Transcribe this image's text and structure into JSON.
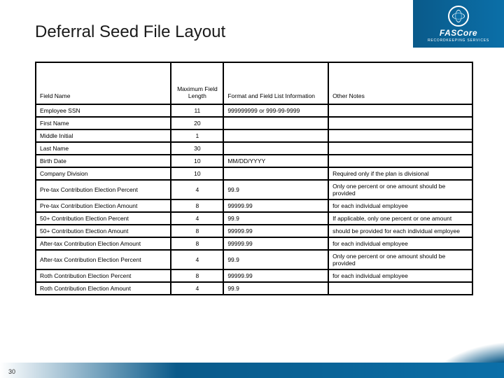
{
  "brand": {
    "name": "FASCore",
    "tagline": "RECORDKEEPING SERVICES"
  },
  "page_number": "30",
  "title": "Deferral Seed File Layout",
  "table": {
    "columns": [
      {
        "label": "Field Name",
        "align": "left"
      },
      {
        "label": "Maximum Field Length",
        "align": "center"
      },
      {
        "label": "Format and Field List Information",
        "align": "left"
      },
      {
        "label": "Other Notes",
        "align": "left"
      }
    ],
    "rows": [
      {
        "field": "Employee SSN",
        "len": "11",
        "fmt": "999999999 or 999-99-9999",
        "notes": ""
      },
      {
        "field": "First Name",
        "len": "20",
        "fmt": "",
        "notes": ""
      },
      {
        "field": "Middle Initial",
        "len": "1",
        "fmt": "",
        "notes": ""
      },
      {
        "field": "Last Name",
        "len": "30",
        "fmt": "",
        "notes": ""
      },
      {
        "field": "Birth Date",
        "len": "10",
        "fmt": "MM/DD/YYYY",
        "notes": ""
      },
      {
        "field": "Company Division",
        "len": "10",
        "fmt": "",
        "notes": "Required only if the plan is divisional"
      },
      {
        "field": "Pre-tax Contribution Election Percent",
        "len": "4",
        "fmt": "99.9",
        "notes": "Only one percent or one amount should be provided"
      },
      {
        "field": "Pre-tax Contribution Election Amount",
        "len": "8",
        "fmt": "99999.99",
        "notes": "for each individual employee"
      },
      {
        "field": "50+ Contribution Election Percent",
        "len": "4",
        "fmt": "99.9",
        "notes": "If applicable, only one percent or one amount"
      },
      {
        "field": "50+ Contribution Election Amount",
        "len": "8",
        "fmt": "99999.99",
        "notes": "should be provided for each individual employee"
      },
      {
        "field": "After-tax Contribution Election Amount",
        "len": "8",
        "fmt": "99999.99",
        "notes": "for each individual employee"
      },
      {
        "field": "After-tax Contribution Election Percent",
        "len": "4",
        "fmt": "99.9",
        "notes": "Only one percent or one amount should be provided"
      },
      {
        "field": "Roth Contribution Election Percent",
        "len": "8",
        "fmt": "99999.99",
        "notes": "for each individual employee"
      },
      {
        "field": "Roth Contribution Election Amount",
        "len": "4",
        "fmt": "99.9",
        "notes": ""
      }
    ]
  },
  "colors": {
    "brand_dark": "#0a5a8a",
    "brand_light": "#0b6fa8",
    "border": "#000000",
    "bg": "#ffffff"
  }
}
